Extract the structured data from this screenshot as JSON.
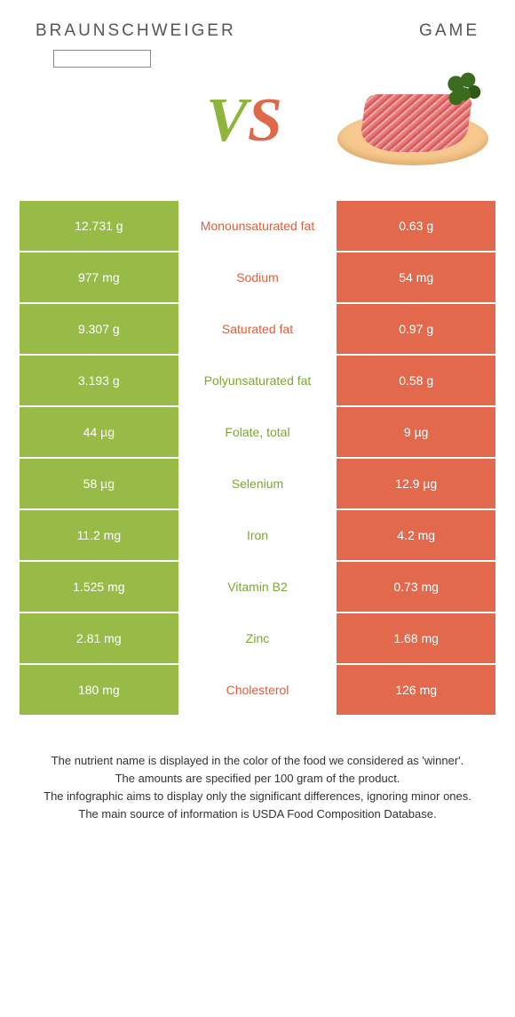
{
  "header": {
    "left": "Braunschweiger",
    "right": "Game"
  },
  "vs": {
    "v": "V",
    "s": "S"
  },
  "colors": {
    "left_bg": "#97bb46",
    "right_bg": "#e2694b",
    "green_text": "#7ca636",
    "orange_text": "#d9603f"
  },
  "rows": [
    {
      "left": "12.731 g",
      "mid": "Monounsaturated fat",
      "right": "0.63 g",
      "winner": "orange"
    },
    {
      "left": "977 mg",
      "mid": "Sodium",
      "right": "54 mg",
      "winner": "orange"
    },
    {
      "left": "9.307 g",
      "mid": "Saturated fat",
      "right": "0.97 g",
      "winner": "orange"
    },
    {
      "left": "3.193 g",
      "mid": "Polyunsaturated fat",
      "right": "0.58 g",
      "winner": "green"
    },
    {
      "left": "44 µg",
      "mid": "Folate, total",
      "right": "9 µg",
      "winner": "green"
    },
    {
      "left": "58 µg",
      "mid": "Selenium",
      "right": "12.9 µg",
      "winner": "green"
    },
    {
      "left": "11.2 mg",
      "mid": "Iron",
      "right": "4.2 mg",
      "winner": "green"
    },
    {
      "left": "1.525 mg",
      "mid": "Vitamin B2",
      "right": "0.73 mg",
      "winner": "green"
    },
    {
      "left": "2.81 mg",
      "mid": "Zinc",
      "right": "1.68 mg",
      "winner": "green"
    },
    {
      "left": "180 mg",
      "mid": "Cholesterol",
      "right": "126 mg",
      "winner": "orange"
    }
  ],
  "footer": {
    "l1": "The nutrient name is displayed in the color of the food we considered as 'winner'.",
    "l2": "The amounts are specified per 100 gram of the product.",
    "l3": "The infographic aims to display only the significant differences, ignoring minor ones.",
    "l4": "The main source of information is USDA Food Composition Database."
  }
}
